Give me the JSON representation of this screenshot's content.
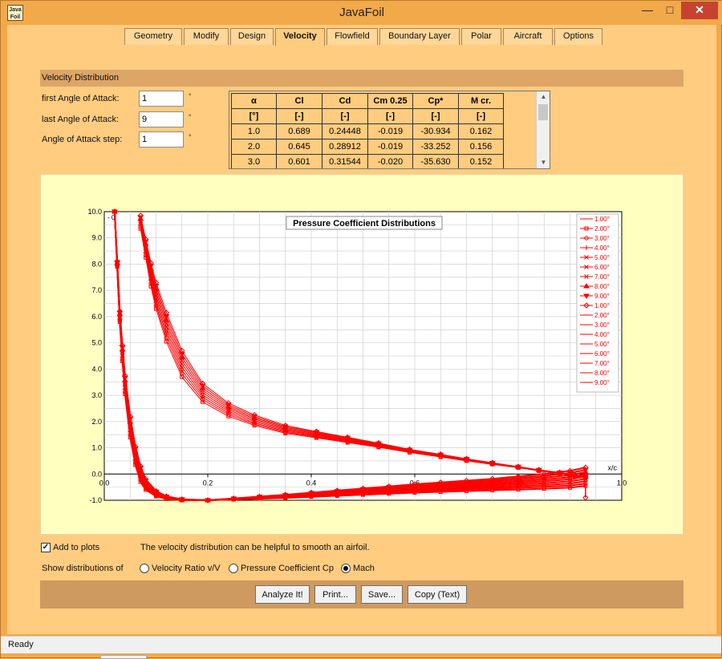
{
  "window": {
    "app_icon_text": [
      "Java",
      "Foil"
    ],
    "title": "JavaFoil",
    "minimize": "—",
    "maximize": "□",
    "close": "✕"
  },
  "tabs": [
    {
      "label": "Geometry",
      "active": false
    },
    {
      "label": "Modify",
      "active": false
    },
    {
      "label": "Design",
      "active": false
    },
    {
      "label": "Velocity",
      "active": true
    },
    {
      "label": "Flowfield",
      "active": false
    },
    {
      "label": "Boundary Layer",
      "active": false
    },
    {
      "label": "Polar",
      "active": false
    },
    {
      "label": "Aircraft",
      "active": false
    },
    {
      "label": "Options",
      "active": false
    }
  ],
  "section": {
    "title": "Velocity Distribution"
  },
  "inputs": {
    "first_aoa": {
      "label": "first Angle of Attack:",
      "value": "1",
      "unit": "°"
    },
    "last_aoa": {
      "label": "last Angle of Attack:",
      "value": "9",
      "unit": "°"
    },
    "aoa_step": {
      "label": "Angle of Attack step:",
      "value": "1",
      "unit": "°"
    }
  },
  "results_table": {
    "headers": [
      "α",
      "Cl",
      "Cd",
      "Cm 0.25",
      "Cp*",
      "M cr."
    ],
    "units": [
      "[°]",
      "[-]",
      "[-]",
      "[-]",
      "[-]",
      "[-]"
    ],
    "rows": [
      [
        "1.0",
        "0.689",
        "0.24448",
        "-0.019",
        "-30.934",
        "0.162"
      ],
      [
        "2.0",
        "0.645",
        "0.28912",
        "-0.019",
        "-33.252",
        "0.156"
      ],
      [
        "3.0",
        "0.601",
        "0.31544",
        "-0.020",
        "-35.630",
        "0.152"
      ]
    ]
  },
  "chart_data": {
    "type": "line",
    "title": "Pressure Coefficient Distributions",
    "xlabel": "x/c",
    "ylabel": "",
    "xlim": [
      0,
      1.0
    ],
    "ylim": [
      -1.0,
      10.0
    ],
    "x_ticks": [
      "0.0",
      "0.2",
      "0.4",
      "0.6",
      "0.8",
      "1.0"
    ],
    "y_ticks": [
      "-1.0",
      "0.0",
      "1.0",
      "2.0",
      "3.0",
      "4.0",
      "5.0",
      "6.0",
      "7.0",
      "8.0",
      "9.0",
      "10.0"
    ],
    "grid": true,
    "legend_position": "right",
    "corner_label": "- 0",
    "line_color": "#ff0000",
    "legend": [
      {
        "label": "1.00°",
        "marker": "none"
      },
      {
        "label": "2.00°",
        "marker": "square"
      },
      {
        "label": "3.00°",
        "marker": "circle"
      },
      {
        "label": "4.00°",
        "marker": "plus"
      },
      {
        "label": "5.00°",
        "marker": "x"
      },
      {
        "label": "6.00°",
        "marker": "y"
      },
      {
        "label": "7.00°",
        "marker": "arrow"
      },
      {
        "label": "8.00°",
        "marker": "triangle-up"
      },
      {
        "label": "9.00°",
        "marker": "triangle-down"
      },
      {
        "label": "1.00°",
        "marker": "diamond"
      },
      {
        "label": "2.00°",
        "marker": "none"
      },
      {
        "label": "3.00°",
        "marker": "none"
      },
      {
        "label": "4.00°",
        "marker": "none"
      },
      {
        "label": "5.00°",
        "marker": "none"
      },
      {
        "label": "6.00°",
        "marker": "none"
      },
      {
        "label": "7.00°",
        "marker": "none"
      },
      {
        "label": "8.00°",
        "marker": "none"
      },
      {
        "label": "9.00°",
        "marker": "none"
      }
    ],
    "upper_curves": {
      "x": [
        0.07,
        0.08,
        0.09,
        0.1,
        0.12,
        0.15,
        0.19,
        0.24,
        0.29,
        0.35,
        0.41,
        0.47,
        0.53,
        0.59,
        0.65,
        0.7,
        0.75,
        0.8,
        0.84,
        0.88,
        0.91,
        0.93
      ],
      "base_y": [
        9.6,
        8.6,
        7.6,
        6.8,
        5.6,
        4.2,
        3.1,
        2.45,
        2.05,
        1.7,
        1.5,
        1.3,
        1.1,
        0.88,
        0.7,
        0.54,
        0.4,
        0.26,
        0.14,
        0.04,
        -0.06,
        -0.12
      ],
      "spread": [
        0.25,
        0.35,
        0.45,
        0.5,
        0.55,
        0.5,
        0.35,
        0.25,
        0.2,
        0.15,
        0.12,
        0.1,
        0.08,
        0.06,
        0.05,
        0.04,
        0.03,
        0.02,
        0.02,
        0.02,
        0.02,
        0.02
      ]
    },
    "lower_curves": {
      "x": [
        0.02,
        0.025,
        0.03,
        0.035,
        0.04,
        0.05,
        0.06,
        0.07,
        0.08,
        0.1,
        0.12,
        0.15,
        0.2,
        0.25,
        0.3,
        0.35,
        0.4,
        0.45,
        0.5,
        0.55,
        0.6,
        0.65,
        0.7,
        0.75,
        0.8,
        0.85,
        0.9,
        0.93
      ],
      "base_y": [
        10.0,
        8.0,
        6.0,
        4.6,
        3.4,
        1.8,
        0.7,
        0.0,
        -0.4,
        -0.75,
        -0.9,
        -0.98,
        -1.0,
        -0.95,
        -0.9,
        -0.85,
        -0.79,
        -0.73,
        -0.67,
        -0.61,
        -0.55,
        -0.5,
        -0.45,
        -0.4,
        -0.34,
        -0.28,
        -0.2,
        -0.1
      ],
      "spread": [
        0.0,
        0.1,
        0.2,
        0.3,
        0.35,
        0.4,
        0.35,
        0.3,
        0.2,
        0.1,
        0.05,
        0.02,
        0.0,
        0.02,
        0.04,
        0.06,
        0.08,
        0.1,
        0.12,
        0.14,
        0.16,
        0.18,
        0.2,
        0.22,
        0.25,
        0.28,
        0.32,
        0.35
      ]
    },
    "trailing_edge_point": {
      "x": 0.93,
      "y": -0.9
    }
  },
  "add_to_plots": {
    "label": "Add to plots",
    "checked": true
  },
  "hint": "The velocity distribution can be helpful to smooth an airfoil.",
  "show_distributions": {
    "label": "Show distributions of",
    "options": [
      {
        "label": "Velocity Ratio v/V",
        "selected": false
      },
      {
        "label": "Pressure Coefficient Cp",
        "selected": false
      },
      {
        "label": "Mach",
        "selected": true
      }
    ]
  },
  "buttons": {
    "analyze": "Analyze It!",
    "print": "Print...",
    "save": "Save...",
    "copy": "Copy (Text)"
  },
  "status": "Ready"
}
